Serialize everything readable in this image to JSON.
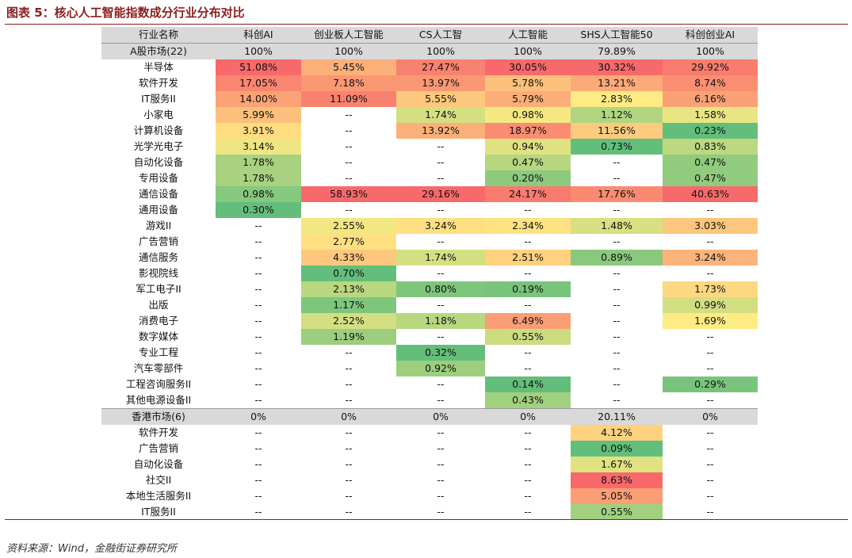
{
  "title": "图表 5：核心人工智能指数成分行业分布对比",
  "source": "资料来源：Wind，金融街证券研究所",
  "table": {
    "header": [
      "行业名称",
      "科创AI",
      "创业板人工智能",
      "CS人工智",
      "人工智能",
      "SHS人工智能50",
      "科创创业AI"
    ],
    "groups": [
      {
        "summary": [
          "A股市场(22)",
          "100%",
          "100%",
          "100%",
          "100%",
          "79.89%",
          "100%"
        ],
        "rows": [
          [
            "半导体",
            "51.08%",
            "5.45%",
            "27.47%",
            "30.05%",
            "30.32%",
            "29.92%"
          ],
          [
            "软件开发",
            "17.05%",
            "7.18%",
            "13.97%",
            "5.78%",
            "13.21%",
            "8.74%"
          ],
          [
            "IT服务II",
            "14.00%",
            "11.09%",
            "5.55%",
            "5.79%",
            "2.83%",
            "6.16%"
          ],
          [
            "小家电",
            "5.99%",
            "--",
            "1.74%",
            "0.98%",
            "1.12%",
            "1.58%"
          ],
          [
            "计算机设备",
            "3.91%",
            "--",
            "13.92%",
            "18.97%",
            "11.56%",
            "0.23%"
          ],
          [
            "光学光电子",
            "3.14%",
            "--",
            "--",
            "0.94%",
            "0.73%",
            "0.83%"
          ],
          [
            "自动化设备",
            "1.78%",
            "--",
            "--",
            "0.47%",
            "--",
            "0.47%"
          ],
          [
            "专用设备",
            "1.78%",
            "--",
            "--",
            "0.20%",
            "--",
            "0.47%"
          ],
          [
            "通信设备",
            "0.98%",
            "58.93%",
            "29.16%",
            "24.17%",
            "17.76%",
            "40.63%"
          ],
          [
            "通用设备",
            "0.30%",
            "--",
            "--",
            "--",
            "--",
            "--"
          ],
          [
            "游戏II",
            "--",
            "2.55%",
            "3.24%",
            "2.34%",
            "1.48%",
            "3.03%"
          ],
          [
            "广告营销",
            "--",
            "2.77%",
            "--",
            "--",
            "--",
            "--"
          ],
          [
            "通信服务",
            "--",
            "4.33%",
            "1.74%",
            "2.51%",
            "0.89%",
            "3.24%"
          ],
          [
            "影视院线",
            "--",
            "0.70%",
            "--",
            "--",
            "--",
            "--"
          ],
          [
            "军工电子II",
            "--",
            "2.13%",
            "0.80%",
            "0.19%",
            "--",
            "1.73%"
          ],
          [
            "出版",
            "--",
            "1.17%",
            "--",
            "--",
            "--",
            "0.99%"
          ],
          [
            "消费电子",
            "--",
            "2.52%",
            "1.18%",
            "6.49%",
            "--",
            "1.69%"
          ],
          [
            "数字媒体",
            "--",
            "1.19%",
            "--",
            "0.55%",
            "--",
            "--"
          ],
          [
            "专业工程",
            "--",
            "--",
            "0.32%",
            "--",
            "--",
            "--"
          ],
          [
            "汽车零部件",
            "--",
            "--",
            "0.92%",
            "--",
            "--",
            "--"
          ],
          [
            "工程咨询服务II",
            "--",
            "--",
            "--",
            "0.14%",
            "--",
            "0.29%"
          ],
          [
            "其他电源设备II",
            "--",
            "--",
            "--",
            "0.43%",
            "--",
            "--"
          ]
        ]
      },
      {
        "summary": [
          "香港市场(6)",
          "0%",
          "0%",
          "0%",
          "0%",
          "20.11%",
          "0%"
        ],
        "rows": [
          [
            "软件开发",
            "--",
            "--",
            "--",
            "--",
            "4.12%",
            "--"
          ],
          [
            "广告营销",
            "--",
            "--",
            "--",
            "--",
            "0.09%",
            "--"
          ],
          [
            "自动化设备",
            "--",
            "--",
            "--",
            "--",
            "1.67%",
            "--"
          ],
          [
            "社交II",
            "--",
            "--",
            "--",
            "--",
            "8.63%",
            "--"
          ],
          [
            "本地生活服务II",
            "--",
            "--",
            "--",
            "--",
            "5.05%",
            "--"
          ],
          [
            "IT服务II",
            "--",
            "--",
            "--",
            "--",
            "0.55%",
            "--"
          ]
        ]
      }
    ]
  }
}
